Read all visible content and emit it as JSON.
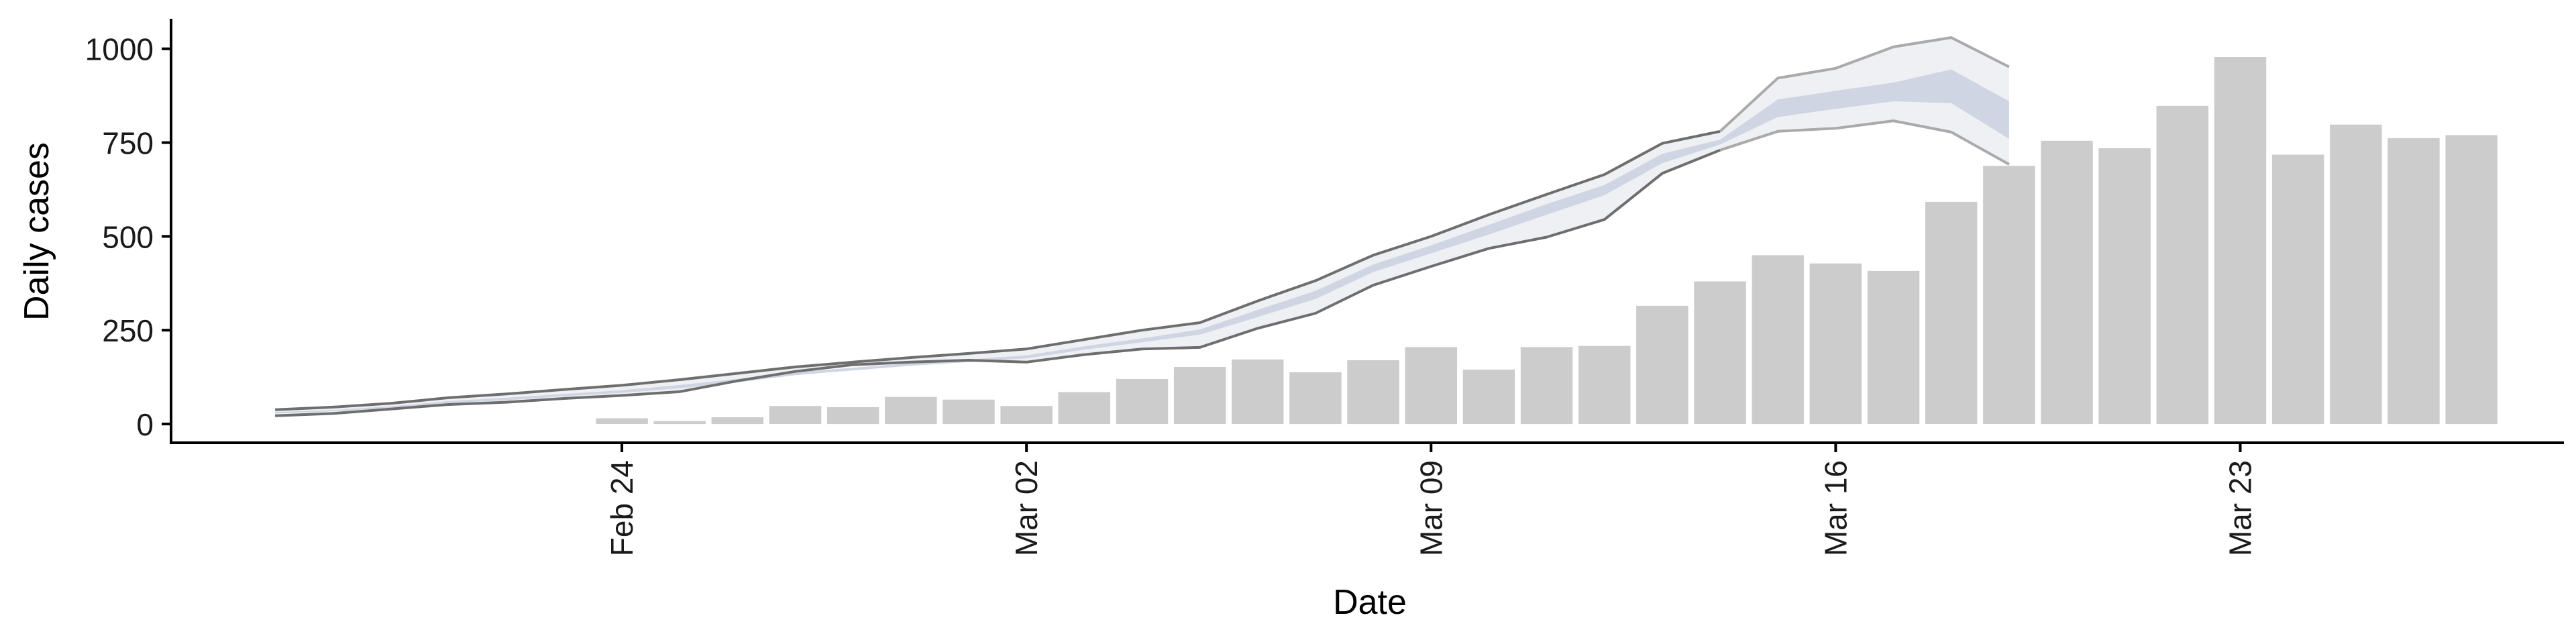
{
  "chart_data": {
    "type": "bar",
    "xlabel": "Date",
    "ylabel": "Daily cases",
    "x_ticks": [
      {
        "day": 24,
        "label": "Feb 24"
      },
      {
        "day": 31,
        "label": "Mar 02"
      },
      {
        "day": 38,
        "label": "Mar 09"
      },
      {
        "day": 45,
        "label": "Mar 16"
      },
      {
        "day": 52,
        "label": "Mar 23"
      }
    ],
    "y_ticks": [
      0,
      250,
      500,
      750,
      1000
    ],
    "ylim": [
      -50,
      1080
    ],
    "xlim": [
      16.2,
      57.6
    ],
    "grid": false,
    "legend": "none",
    "colors": {
      "bars": "#cccccc",
      "band_outer_fill": "#eef0f4",
      "band_inner_fill": "#cfd5e2",
      "band_outer_line_early": "#6e6e6e",
      "band_outer_line_late": "#aaaaaa",
      "axis": "#000000"
    },
    "bars": {
      "start_day": 24,
      "values": [
        15,
        8,
        18,
        48,
        45,
        72,
        65,
        48,
        85,
        120,
        152,
        172,
        138,
        170,
        205,
        145,
        205,
        208,
        315,
        380,
        450,
        428,
        408,
        592,
        688,
        755,
        735,
        848,
        978,
        718,
        798,
        762,
        770
      ]
    },
    "nowcast_band": {
      "start_day": 18,
      "outer_upper": [
        38,
        45,
        55,
        70,
        80,
        92,
        103,
        118,
        135,
        152,
        165,
        177,
        188,
        200,
        225,
        250,
        270,
        328,
        382,
        450,
        500,
        558,
        612,
        665,
        748,
        780,
        922,
        948,
        1005,
        1030,
        952
      ],
      "inner_upper": [
        32,
        37,
        47,
        61,
        70,
        80,
        90,
        104,
        120,
        138,
        150,
        162,
        172,
        183,
        207,
        228,
        252,
        304,
        355,
        425,
        476,
        531,
        586,
        637,
        720,
        758,
        865,
        888,
        910,
        945,
        860
      ],
      "inner_lower": [
        28,
        34,
        43,
        56,
        63,
        74,
        83,
        95,
        111,
        130,
        143,
        155,
        165,
        175,
        198,
        218,
        238,
        285,
        333,
        405,
        455,
        505,
        558,
        610,
        695,
        745,
        818,
        840,
        860,
        855,
        760
      ],
      "outer_lower": [
        22,
        28,
        40,
        52,
        58,
        68,
        76,
        86,
        115,
        140,
        158,
        165,
        170,
        165,
        185,
        200,
        204,
        255,
        295,
        370,
        420,
        468,
        498,
        545,
        668,
        730,
        780,
        788,
        808,
        778,
        692
      ]
    }
  }
}
